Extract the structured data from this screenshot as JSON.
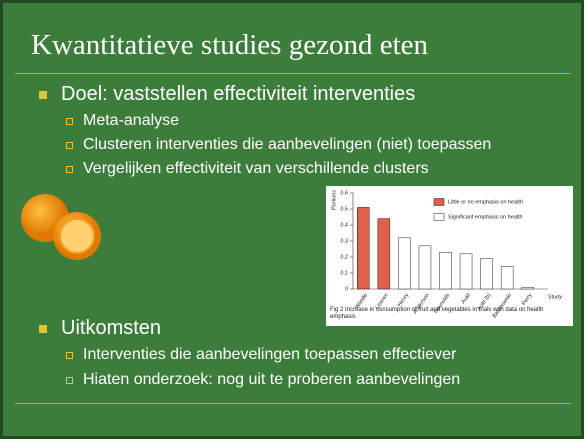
{
  "slide": {
    "title": "Kwantitatieve studies gezond eten",
    "bullets": [
      {
        "text": "Doel: vaststellen effectiviteit interventies",
        "sub": [
          "Meta-analyse",
          "Clusteren interventies die aanbevelingen (niet) toepassen",
          "Vergelijken effectiviteit van verschillende clusters"
        ]
      },
      {
        "text": "Uitkomsten",
        "sub": [
          "Interventies die aanbevelingen toepassen effectiever",
          "Hiaten onderzoek: nog uit te proberen aanbevelingen"
        ]
      }
    ]
  },
  "chart_data": {
    "type": "bar",
    "caption": "Fig 2 Increase in consumption of fruit and vegetables in trials with data on health emphasis",
    "y_label": "Portions",
    "x_label": "Study",
    "categories": [
      "Wardle",
      "Lissner",
      "Henry",
      "Anderson",
      "Reynolds",
      "Auld",
      "Auld (b)",
      "Baranowski",
      "Perry"
    ],
    "series": [
      {
        "name": "Little or no emphasis on health",
        "color": "#e0604a",
        "values": [
          0.51,
          0.44,
          null,
          null,
          null,
          null,
          null,
          null,
          null
        ]
      },
      {
        "name": "Significant emphasis on health",
        "color": "#ffffff",
        "values": [
          null,
          null,
          0.32,
          0.27,
          0.23,
          0.22,
          0.19,
          0.14,
          0.01
        ]
      }
    ],
    "ylim": [
      0,
      0.6
    ],
    "yticks": [
      0,
      0.1,
      0.2,
      0.3,
      0.4,
      0.5,
      0.6
    ]
  }
}
